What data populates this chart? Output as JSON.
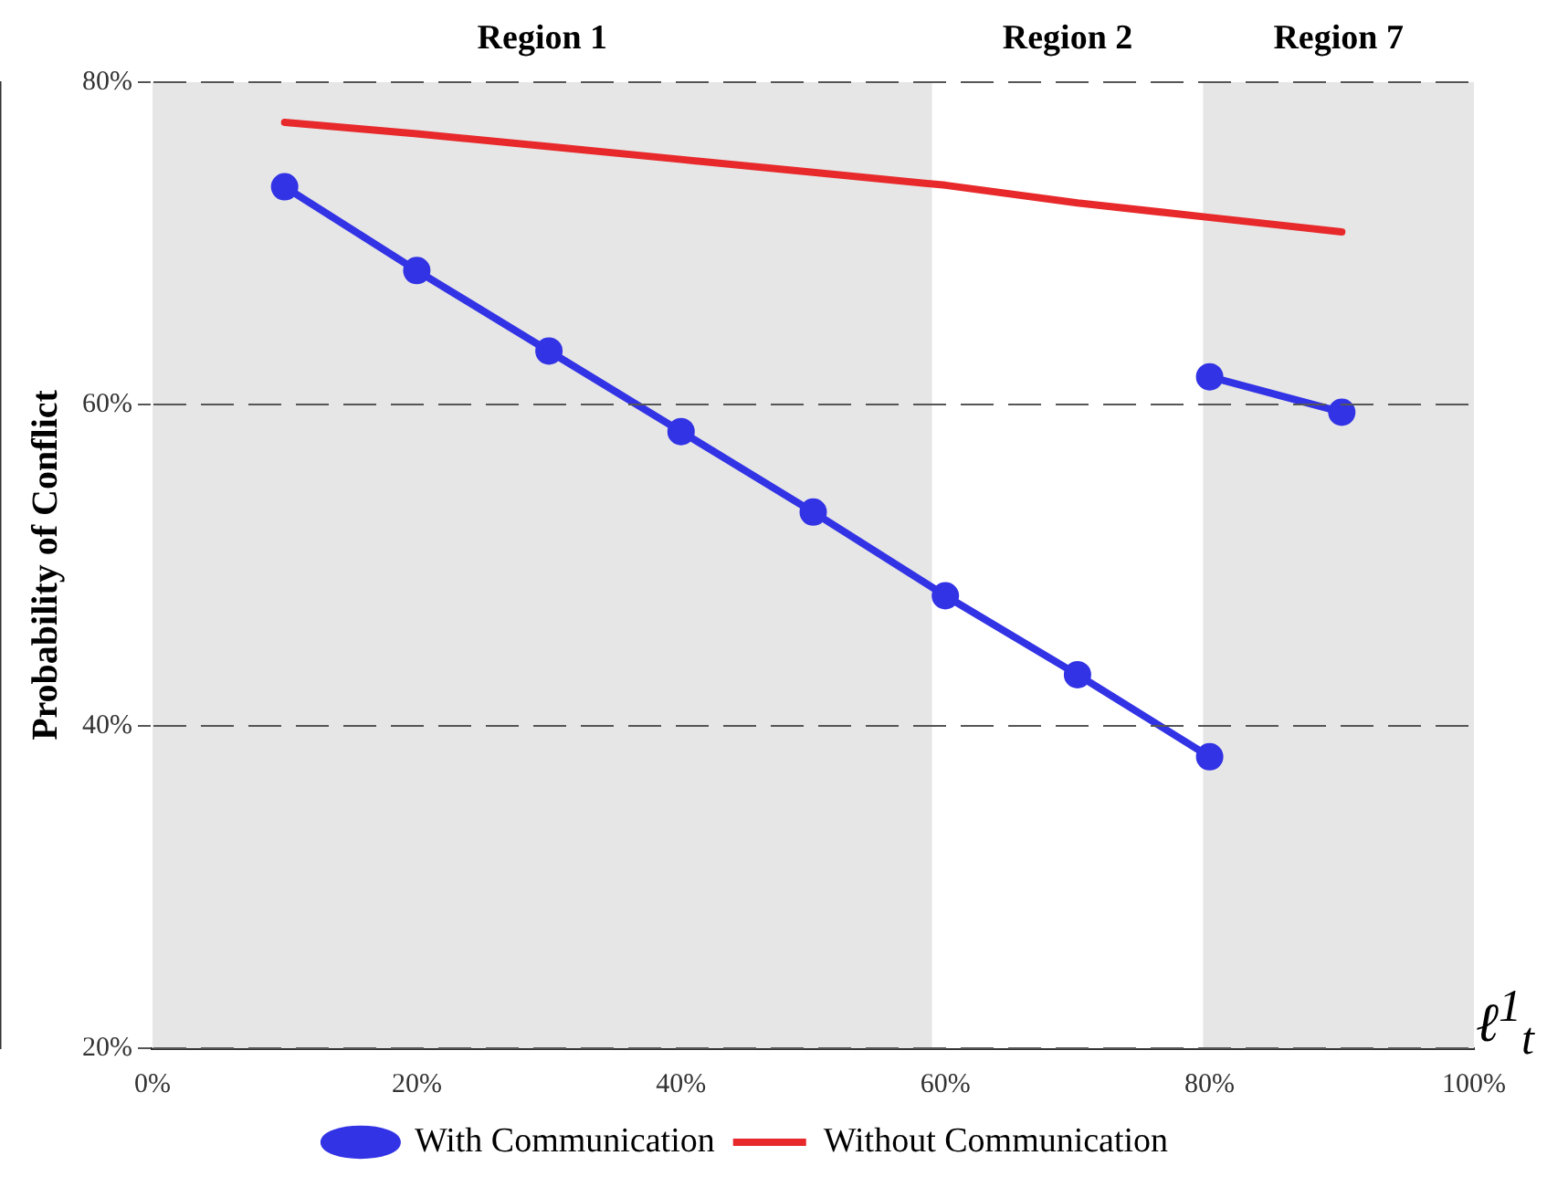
{
  "chart_data": {
    "type": "line",
    "xlabel": "ℓ$^{1}$$_{t}$",
    "ylabel": "Probability of Conflict",
    "xlim": [
      0,
      100
    ],
    "xticks": [
      {
        "value": 0,
        "label": "0%"
      },
      {
        "value": 20,
        "label": "20%"
      },
      {
        "value": 40,
        "label": "40%"
      },
      {
        "value": 60,
        "label": "60%"
      },
      {
        "value": 80,
        "label": "80%"
      },
      {
        "value": 100,
        "label": "100%"
      }
    ],
    "ylim": [
      20,
      80
    ],
    "yticks": [
      {
        "value": 20,
        "label": "20%"
      },
      {
        "value": 40,
        "label": "40%"
      },
      {
        "value": 60,
        "label": "60%"
      },
      {
        "value": 80,
        "label": "80%"
      }
    ],
    "series": [
      {
        "name": "With Communication",
        "color": "#3333e6",
        "marker": "circle",
        "x": [
          10,
          20,
          30,
          40,
          50,
          60,
          70,
          80
        ],
        "values": [
          73.5,
          68.3,
          63.3,
          58.3,
          53.3,
          48.1,
          43.2,
          38.1
        ]
      },
      {
        "color": "#3333e6",
        "marker": "circle",
        "x": [
          80,
          90
        ],
        "values": [
          61.7,
          59.5
        ]
      },
      {
        "name": "Without Communication",
        "color": "#e8292b",
        "marker": "none",
        "x": [
          10,
          20,
          30,
          40,
          50,
          60,
          70,
          80,
          90
        ],
        "values": [
          77.5,
          76.8,
          76.0,
          75.2,
          74.4,
          73.6,
          72.5,
          71.6,
          70.7
        ]
      }
    ],
    "bands": [
      {
        "axis": "x",
        "from": 0,
        "to": 59,
        "label": "Region 1",
        "color": "#e6e6e6"
      },
      {
        "axis": "x",
        "from": 59,
        "to": 79.5,
        "label": "Region 2",
        "color": "#ffffff"
      },
      {
        "axis": "x",
        "from": 79.5,
        "to": 100,
        "label": "Region 7",
        "color": "#e6e6e6"
      }
    ],
    "grid": "y",
    "line_style": "solid",
    "legend": "bottom"
  }
}
